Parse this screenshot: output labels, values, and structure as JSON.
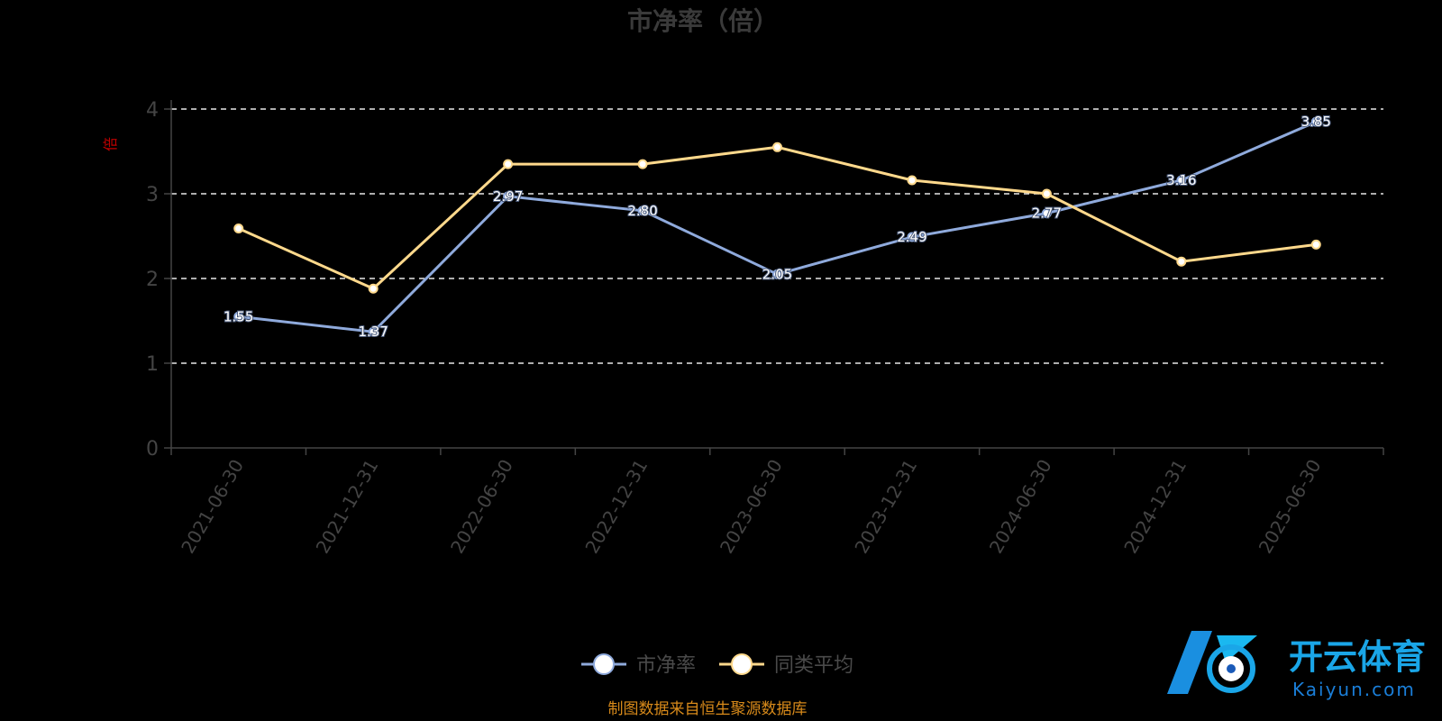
{
  "chart_data": {
    "type": "line",
    "title": "市净率（倍）",
    "ylabel": "倍",
    "xlabel": "",
    "ylim": [
      0,
      4
    ],
    "yticks": [
      0,
      1,
      2,
      3,
      4
    ],
    "grid": "horizontal-dashed",
    "legend_position": "bottom-center",
    "categories": [
      "2021-06-30",
      "2021-12-31",
      "2022-06-30",
      "2022-12-31",
      "2023-06-30",
      "2023-12-31",
      "2024-06-30",
      "2024-12-31",
      "2025-06-30"
    ],
    "series": [
      {
        "name": "市净率",
        "color": "#8faadc",
        "values": [
          1.55,
          1.37,
          2.97,
          2.8,
          2.05,
          2.49,
          2.77,
          3.16,
          3.85
        ]
      },
      {
        "name": "同类平均",
        "color": "#ffd98c",
        "values": [
          2.59,
          1.88,
          3.35,
          3.35,
          3.55,
          3.16,
          3.0,
          2.2,
          2.4
        ]
      }
    ]
  },
  "source": "制图数据来自恒生聚源数据库",
  "watermark": {
    "cn": "开云体育",
    "en": "Kaiyun.com"
  }
}
